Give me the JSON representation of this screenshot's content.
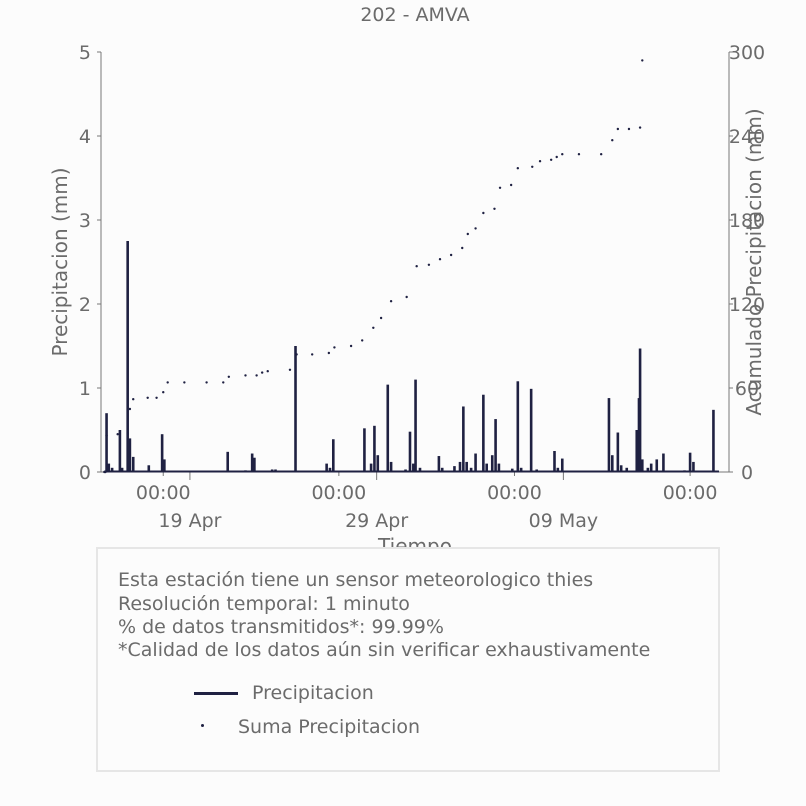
{
  "chart_data": {
    "type": "bar",
    "title": "202 - AMVA",
    "xlabel": "Tiempo",
    "ylabel": "Precipitacion (mm)",
    "y2label": "Acumulado Precipitacion (mm)",
    "ylim": [
      0,
      5
    ],
    "y2lim": [
      0,
      300
    ],
    "yticks": [
      0,
      1,
      2,
      3,
      4,
      5
    ],
    "y2ticks": [
      0,
      60,
      120,
      180,
      240,
      300
    ],
    "xlim_days": [
      0,
      37.5
    ],
    "xticks_minor": [
      {
        "day": 4.5,
        "label": "00:00"
      },
      {
        "day": 14.5,
        "label": "00:00"
      },
      {
        "day": 24.5,
        "label": "00:00"
      },
      {
        "day": 34.5,
        "label": "00:00"
      }
    ],
    "xticks_major": [
      {
        "day": 13.4,
        "label": "19 Apr"
      },
      {
        "day": 30.2,
        "label": "29 Apr"
      },
      {
        "day": 47.0,
        "label": "09 May"
      }
    ],
    "series": [
      {
        "name": "Precipitacion",
        "kind": "bar",
        "points": [
          [
            0.5,
            0.7
          ],
          [
            0.7,
            0.1
          ],
          [
            1.0,
            0.05
          ],
          [
            1.7,
            0.5
          ],
          [
            1.9,
            0.05
          ],
          [
            2.4,
            2.75
          ],
          [
            2.6,
            0.4
          ],
          [
            2.9,
            0.18
          ],
          [
            4.3,
            0.08
          ],
          [
            5.5,
            0.45
          ],
          [
            5.7,
            0.15
          ],
          [
            11.4,
            0.24
          ],
          [
            13.0,
            0.02
          ],
          [
            13.6,
            0.22
          ],
          [
            13.8,
            0.17
          ],
          [
            15.4,
            0.03
          ],
          [
            15.7,
            0.03
          ],
          [
            17.5,
            1.5
          ],
          [
            20.3,
            0.1
          ],
          [
            20.6,
            0.05
          ],
          [
            20.9,
            0.39
          ],
          [
            23.7,
            0.52
          ],
          [
            24.3,
            0.1
          ],
          [
            24.6,
            0.55
          ],
          [
            24.9,
            0.2
          ],
          [
            25.8,
            1.04
          ],
          [
            26.1,
            0.12
          ],
          [
            27.4,
            0.03
          ],
          [
            27.8,
            0.48
          ],
          [
            28.1,
            0.1
          ],
          [
            28.3,
            1.1
          ],
          [
            28.7,
            0.05
          ],
          [
            30.4,
            0.19
          ],
          [
            30.7,
            0.05
          ],
          [
            31.8,
            0.07
          ],
          [
            32.3,
            0.12
          ],
          [
            32.6,
            0.78
          ],
          [
            32.9,
            0.12
          ],
          [
            33.3,
            0.05
          ],
          [
            33.7,
            0.22
          ],
          [
            34.4,
            0.92
          ],
          [
            34.7,
            0.1
          ],
          [
            35.2,
            0.2
          ],
          [
            35.5,
            0.63
          ],
          [
            35.8,
            0.1
          ],
          [
            37.0,
            0.04
          ],
          [
            37.5,
            1.08
          ],
          [
            37.8,
            0.05
          ],
          [
            38.7,
            0.99
          ],
          [
            39.2,
            0.03
          ],
          [
            40.8,
            0.25
          ],
          [
            41.1,
            0.05
          ],
          [
            41.5,
            0.16
          ],
          [
            45.7,
            0.88
          ],
          [
            46.0,
            0.2
          ],
          [
            46.5,
            0.47
          ],
          [
            46.8,
            0.08
          ],
          [
            47.3,
            0.05
          ],
          [
            48.2,
            0.5
          ],
          [
            48.4,
            0.88
          ],
          [
            48.5,
            1.47
          ],
          [
            48.7,
            0.15
          ],
          [
            49.2,
            0.05
          ],
          [
            49.5,
            0.1
          ],
          [
            50.0,
            0.15
          ],
          [
            50.6,
            0.22
          ],
          [
            52.5,
            0.02
          ],
          [
            53.0,
            0.23
          ],
          [
            53.3,
            0.12
          ],
          [
            55.1,
            0.74
          ]
        ]
      },
      {
        "name": "Suma Precipitacion",
        "kind": "dots",
        "points": [
          [
            0.3,
            0
          ],
          [
            0.4,
            0
          ],
          [
            0.5,
            26
          ],
          [
            1.5,
            27
          ],
          [
            2.4,
            27.5
          ],
          [
            2.6,
            45
          ],
          [
            2.9,
            52
          ],
          [
            4.2,
            53
          ],
          [
            5.0,
            53
          ],
          [
            5.6,
            57
          ],
          [
            6.0,
            64
          ],
          [
            7.5,
            64
          ],
          [
            9.5,
            64
          ],
          [
            11.0,
            64
          ],
          [
            11.5,
            68
          ],
          [
            13.0,
            69
          ],
          [
            14.0,
            69
          ],
          [
            14.5,
            71
          ],
          [
            15.0,
            72
          ],
          [
            17.0,
            73
          ],
          [
            17.6,
            84
          ],
          [
            19.0,
            84
          ],
          [
            20.5,
            85
          ],
          [
            21.0,
            89
          ],
          [
            22.5,
            90
          ],
          [
            23.5,
            94
          ],
          [
            24.5,
            103
          ],
          [
            25.2,
            110
          ],
          [
            26.1,
            122
          ],
          [
            27.5,
            125
          ],
          [
            28.4,
            147
          ],
          [
            29.5,
            148
          ],
          [
            30.5,
            152
          ],
          [
            31.5,
            155
          ],
          [
            32.5,
            160
          ],
          [
            33.0,
            170
          ],
          [
            33.7,
            174
          ],
          [
            34.4,
            185
          ],
          [
            35.4,
            188
          ],
          [
            35.9,
            203
          ],
          [
            36.9,
            205
          ],
          [
            37.5,
            217
          ],
          [
            38.8,
            218
          ],
          [
            39.5,
            222
          ],
          [
            40.5,
            223
          ],
          [
            41.0,
            225
          ],
          [
            41.5,
            227
          ],
          [
            43.0,
            227
          ],
          [
            45.0,
            227
          ],
          [
            46.0,
            237
          ],
          [
            46.5,
            245
          ],
          [
            47.5,
            245
          ],
          [
            48.5,
            246
          ],
          [
            48.7,
            294
          ]
        ]
      }
    ]
  },
  "info_box": {
    "line1": "Esta estación tiene un sensor meteorologico thies",
    "line2": "Resolución temporal: 1 minuto",
    "line3": "% de datos transmitidos*: 99.99%",
    "line4": "*Calidad de los datos aún sin verificar exhaustivamente"
  },
  "legend": {
    "bar_label": "Precipitacion",
    "dot_label": "Suma Precipitacion"
  },
  "colors": {
    "series": "#1f2142",
    "text": "#6b6b6b",
    "axis": "#777777"
  }
}
